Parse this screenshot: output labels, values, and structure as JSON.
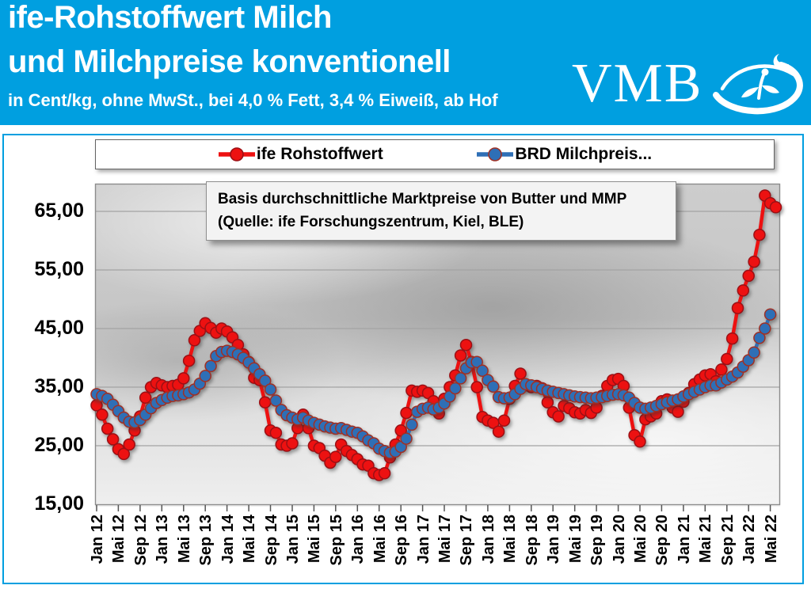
{
  "header": {
    "title_line1": "ife-Rohstoffwert Milch",
    "title_line2": "und Milchpreise konventionell",
    "subtitle": "in Cent/kg, ohne MwSt., bei 4,0 % Fett, 3,4 % Eiweiß, ab Hof",
    "logo_text": "VMB"
  },
  "annotation": {
    "line1": "Basis durchschnittliche Marktpreise von Butter und MMP",
    "line2": "(Quelle: ife Forschungszentrum, Kiel, BLE)"
  },
  "colors": {
    "header_bg": "#009fe0",
    "series_red": "#ed1111",
    "series_red_border": "#9b1015",
    "series_blue": "#2e6fb6",
    "series_blue_border": "#a03024",
    "grid": "#a3a3a3",
    "axis": "#8c8c8c"
  },
  "chart_data": {
    "type": "line",
    "title": "ife-Rohstoffwert Milch und Milchpreise konventionell",
    "ylabel": "Cent/kg",
    "x_interval": "monthly",
    "x_range": [
      "Jan 2012",
      "Jun 2022"
    ],
    "x_tick_every_n_months": 4,
    "x_tick_labels": [
      "Jan 12",
      "Mai 12",
      "Sep 12",
      "Jan 13",
      "Mai 13",
      "Sep 13",
      "Jan 14",
      "Mai 14",
      "Sep 14",
      "Jan 15",
      "Mai 15",
      "Sep 15",
      "Jan 16",
      "Mai 16",
      "Sep 16",
      "Jan 17",
      "Mai 17",
      "Sep 17",
      "Jan 18",
      "Mai 18",
      "Sep 18",
      "Jan 19",
      "Mai 19",
      "Sep 19",
      "Jan 20",
      "Mai 20",
      "Sep 20",
      "Jan 21",
      "Mai 21",
      "Sep 21",
      "Jan 22",
      "Mai 22"
    ],
    "y_ticks": [
      65,
      55,
      45,
      35,
      25,
      15
    ],
    "y_tick_labels": [
      "65,00",
      "55,00",
      "45,00",
      "35,00",
      "25,00",
      "15,00"
    ],
    "ylim": [
      15,
      69.5
    ],
    "grid": true,
    "legend_position": "top",
    "series": [
      {
        "name": "ife Rohstoffwert",
        "color": "#ed1111",
        "marker_border": "#9b1015",
        "values": [
          31.9,
          30.3,
          27.9,
          26.1,
          24.4,
          23.6,
          25.2,
          27.6,
          30.0,
          33.2,
          35.0,
          35.7,
          35.3,
          35.0,
          35.2,
          35.4,
          36.5,
          39.5,
          43.0,
          44.6,
          45.9,
          45.1,
          44.3,
          45.0,
          44.5,
          43.5,
          42.2,
          40.6,
          39.3,
          36.6,
          36.2,
          32.4,
          27.6,
          27.2,
          25.2,
          25.0,
          25.4,
          28.0,
          30.3,
          28.0,
          25.0,
          24.6,
          23.3,
          22.1,
          23.1,
          25.2,
          24.1,
          23.4,
          22.7,
          21.8,
          21.6,
          20.3,
          20.0,
          20.3,
          23.0,
          25.2,
          27.6,
          30.6,
          34.4,
          34.2,
          34.4,
          34.0,
          32.6,
          30.5,
          33.0,
          35.0,
          37.0,
          40.4,
          42.2,
          39.3,
          35.0,
          29.9,
          29.3,
          28.9,
          27.4,
          29.3,
          33.0,
          35.2,
          37.3,
          35.3,
          35.0,
          35.2,
          34.8,
          32.4,
          30.7,
          30.0,
          31.8,
          31.4,
          30.7,
          30.5,
          31.1,
          30.6,
          31.5,
          33.5,
          35.2,
          36.2,
          36.4,
          35.2,
          31.5,
          26.8,
          25.7,
          29.5,
          30.0,
          30.5,
          32.6,
          32.9,
          31.5,
          30.8,
          32.5,
          34.0,
          35.5,
          36.3,
          37.0,
          37.2,
          36.0,
          38.0,
          39.8,
          43.3,
          48.5,
          51.5,
          54.0,
          56.4,
          61.0,
          67.7,
          66.4,
          65.7
        ]
      },
      {
        "name": "BRD Milchpreis...",
        "color": "#2e6fb6",
        "marker_border": "#a03024",
        "values": [
          33.8,
          33.5,
          33.0,
          32.0,
          30.9,
          29.8,
          29.1,
          29.0,
          29.4,
          30.3,
          31.4,
          32.3,
          32.8,
          33.2,
          33.5,
          33.6,
          33.8,
          34.1,
          34.6,
          35.6,
          36.9,
          38.6,
          40.3,
          41.0,
          41.2,
          41.0,
          40.6,
          40.0,
          39.2,
          38.2,
          37.2,
          36.1,
          34.6,
          32.7,
          31.1,
          30.2,
          29.8,
          29.5,
          29.8,
          29.3,
          28.9,
          28.6,
          28.3,
          28.1,
          27.9,
          28.0,
          27.7,
          27.4,
          27.2,
          26.6,
          25.9,
          25.4,
          24.5,
          24.1,
          23.8,
          24.0,
          24.8,
          26.2,
          28.6,
          30.8,
          31.3,
          31.5,
          31.2,
          31.5,
          32.2,
          33.4,
          34.8,
          36.5,
          38.2,
          39.2,
          39.3,
          37.8,
          36.2,
          35.1,
          33.3,
          33.1,
          33.2,
          33.8,
          34.7,
          35.5,
          35.3,
          35.0,
          34.7,
          34.4,
          34.2,
          34.0,
          33.8,
          33.6,
          33.4,
          33.3,
          33.2,
          33.1,
          33.2,
          33.3,
          33.5,
          33.7,
          33.8,
          33.6,
          33.2,
          32.3,
          31.5,
          31.3,
          31.5,
          31.8,
          32.1,
          32.4,
          32.7,
          32.9,
          33.4,
          33.8,
          34.2,
          34.6,
          35.0,
          35.3,
          35.3,
          35.8,
          36.3,
          36.8,
          37.5,
          38.5,
          39.6,
          40.9,
          43.4,
          45.0,
          47.4,
          null
        ]
      }
    ]
  }
}
